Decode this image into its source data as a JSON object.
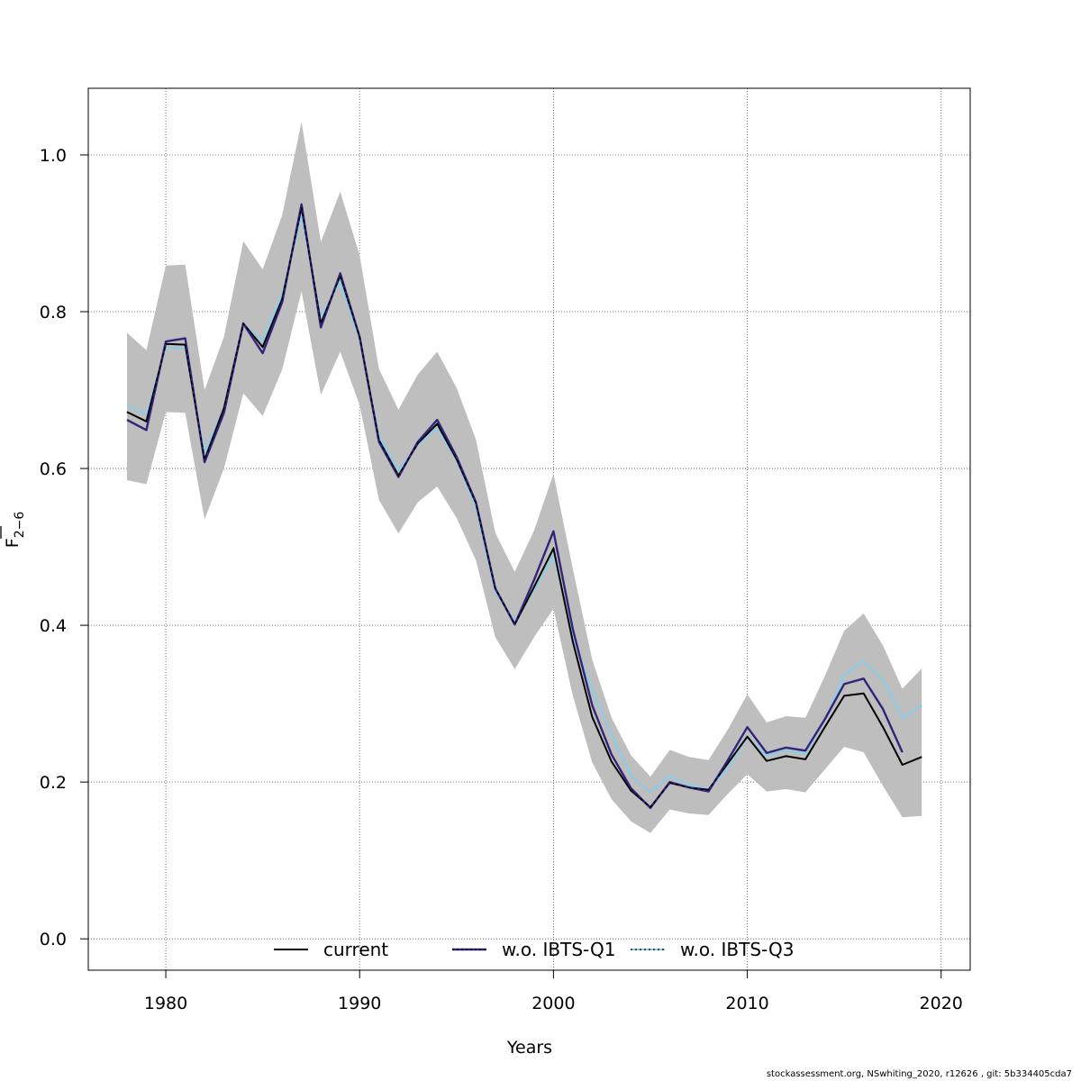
{
  "footer_text": "stockassessment.org, NSwhiting_2020, r12626 , git: 5b334405cda7",
  "chart_data": {
    "type": "line",
    "xlabel": "Years",
    "ylabel_main": "F",
    "ylabel_sub": "2−6",
    "xlim": [
      1976,
      2021.5
    ],
    "ylim": [
      -0.04,
      1.085
    ],
    "xticks": [
      1980,
      1990,
      2000,
      2010,
      2020
    ],
    "yticks": [
      0.0,
      0.2,
      0.4,
      0.6,
      0.8,
      1.0
    ],
    "ytick_labels": [
      "0.0",
      "0.2",
      "0.4",
      "0.6",
      "0.8",
      "1.0"
    ],
    "grid": true,
    "legend_position": "bottom-center",
    "band": {
      "x": [
        1978,
        1979,
        1980,
        1981,
        1982,
        1983,
        1984,
        1985,
        1986,
        1987,
        1988,
        1989,
        1990,
        1991,
        1992,
        1993,
        1994,
        1995,
        1996,
        1997,
        1998,
        1999,
        2000,
        2001,
        2002,
        2003,
        2004,
        2005,
        2006,
        2007,
        2008,
        2009,
        2010,
        2011,
        2012,
        2013,
        2014,
        2015,
        2016,
        2017,
        2018,
        2019
      ],
      "lower": [
        0.585,
        0.58,
        0.672,
        0.671,
        0.535,
        0.6,
        0.696,
        0.667,
        0.726,
        0.826,
        0.694,
        0.749,
        0.681,
        0.56,
        0.517,
        0.557,
        0.577,
        0.537,
        0.483,
        0.385,
        0.344,
        0.385,
        0.421,
        0.31,
        0.225,
        0.178,
        0.15,
        0.135,
        0.165,
        0.16,
        0.158,
        0.185,
        0.21,
        0.188,
        0.191,
        0.187,
        0.216,
        0.245,
        0.238,
        0.195,
        0.155,
        0.157
      ],
      "upper": [
        0.773,
        0.751,
        0.859,
        0.86,
        0.7,
        0.768,
        0.89,
        0.854,
        0.923,
        1.042,
        0.889,
        0.953,
        0.872,
        0.727,
        0.675,
        0.72,
        0.749,
        0.703,
        0.637,
        0.518,
        0.468,
        0.521,
        0.593,
        0.472,
        0.356,
        0.282,
        0.234,
        0.207,
        0.241,
        0.232,
        0.228,
        0.267,
        0.312,
        0.276,
        0.284,
        0.282,
        0.335,
        0.393,
        0.415,
        0.374,
        0.319,
        0.345
      ],
      "color": "#bebebe"
    },
    "series": [
      {
        "name": "current",
        "color": "#000000",
        "dash": "none",
        "x": [
          1978,
          1979,
          1980,
          1981,
          1982,
          1983,
          1984,
          1985,
          1986,
          1987,
          1988,
          1989,
          1990,
          1991,
          1992,
          1993,
          1994,
          1995,
          1996,
          1997,
          1998,
          1999,
          2000,
          2001,
          2002,
          2003,
          2004,
          2005,
          2006,
          2007,
          2008,
          2009,
          2010,
          2011,
          2012,
          2013,
          2014,
          2015,
          2016,
          2017,
          2018,
          2019
        ],
        "values": [
          0.672,
          0.66,
          0.759,
          0.758,
          0.611,
          0.677,
          0.785,
          0.755,
          0.816,
          0.933,
          0.785,
          0.846,
          0.768,
          0.636,
          0.591,
          0.632,
          0.657,
          0.612,
          0.556,
          0.447,
          0.401,
          0.449,
          0.498,
          0.379,
          0.283,
          0.226,
          0.189,
          0.168,
          0.199,
          0.193,
          0.19,
          0.224,
          0.258,
          0.227,
          0.233,
          0.229,
          0.27,
          0.31,
          0.313,
          0.27,
          0.222,
          0.232
        ]
      },
      {
        "name": "w.o. IBTS-Q1",
        "color": "#33247a",
        "dash": "none",
        "x": [
          1978,
          1979,
          1980,
          1981,
          1982,
          1983,
          1984,
          1985,
          1986,
          1987,
          1988,
          1989,
          1990,
          1991,
          1992,
          1993,
          1994,
          1995,
          1996,
          1997,
          1998,
          1999,
          2000,
          2001,
          2002,
          2003,
          2004,
          2005,
          2006,
          2007,
          2008,
          2009,
          2010,
          2011,
          2012,
          2013,
          2014,
          2015,
          2016,
          2017,
          2018
        ],
        "values": [
          0.662,
          0.649,
          0.762,
          0.766,
          0.608,
          0.671,
          0.785,
          0.747,
          0.812,
          0.937,
          0.78,
          0.849,
          0.768,
          0.634,
          0.589,
          0.634,
          0.662,
          0.615,
          0.557,
          0.447,
          0.401,
          0.458,
          0.52,
          0.395,
          0.298,
          0.235,
          0.192,
          0.167,
          0.2,
          0.193,
          0.188,
          0.228,
          0.27,
          0.237,
          0.244,
          0.24,
          0.28,
          0.325,
          0.332,
          0.293,
          0.238
        ]
      },
      {
        "name": "w.o. IBTS-Q3",
        "color": "#87ceeb",
        "dash": "none",
        "x": [
          1978,
          1979,
          1980,
          1981,
          1982,
          1983,
          1984,
          1985,
          1986,
          1987,
          1988,
          1989,
          1990,
          1991,
          1992,
          1993,
          1994,
          1995,
          1996,
          1997,
          1998,
          1999,
          2000,
          2001,
          2002,
          2003,
          2004,
          2005,
          2006,
          2007,
          2008,
          2009,
          2010,
          2011,
          2012,
          2013,
          2014,
          2015,
          2016,
          2017,
          2018,
          2019
        ],
        "values": [
          0.681,
          0.669,
          0.754,
          0.753,
          0.62,
          0.677,
          0.784,
          0.763,
          0.822,
          0.923,
          0.793,
          0.838,
          0.764,
          0.641,
          0.598,
          0.63,
          0.652,
          0.611,
          0.551,
          0.443,
          0.405,
          0.445,
          0.49,
          0.385,
          0.318,
          0.26,
          0.208,
          0.187,
          0.208,
          0.196,
          0.191,
          0.217,
          0.258,
          0.234,
          0.24,
          0.236,
          0.279,
          0.336,
          0.354,
          0.33,
          0.282,
          0.298
        ]
      }
    ],
    "current_overlay": {
      "color": "#000000",
      "dash": "4,3"
    }
  }
}
